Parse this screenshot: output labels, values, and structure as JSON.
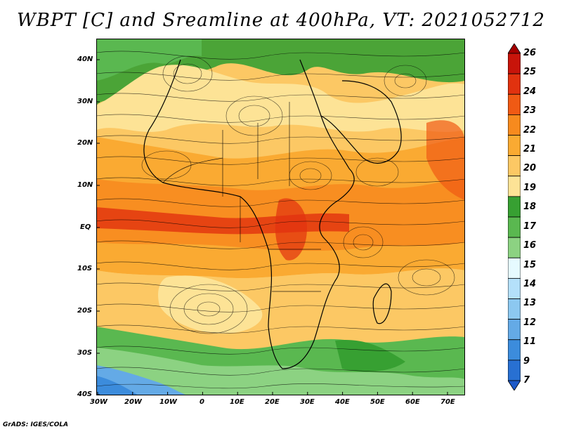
{
  "title": "WBPT [C] and Sreamline at 400hPa, VT: 2021052712",
  "credit": "GrADS: IGES/COLA",
  "map": {
    "lat_labels": [
      "40N",
      "30N",
      "20N",
      "10N",
      "EQ",
      "10S",
      "20S",
      "30S",
      "40S"
    ],
    "lon_labels": [
      "30W",
      "20W",
      "10W",
      "0",
      "10E",
      "20E",
      "30E",
      "40E",
      "50E",
      "60E",
      "70E"
    ]
  },
  "colorbar": {
    "labels": [
      "26",
      "25",
      "24",
      "23",
      "22",
      "21",
      "20",
      "19",
      "18",
      "17",
      "16",
      "15",
      "14",
      "13",
      "12",
      "11",
      "9",
      "7"
    ],
    "colors": [
      "#a50000",
      "#c8140a",
      "#e1320f",
      "#f05a14",
      "#f78a1e",
      "#faaa32",
      "#fcc864",
      "#fde396",
      "#37a032",
      "#5ab850",
      "#8cd282",
      "#e6faff",
      "#b4e0fa",
      "#8cc8f0",
      "#64aae6",
      "#3c8cdc",
      "#2870d2",
      "#1e5ac8"
    ]
  }
}
